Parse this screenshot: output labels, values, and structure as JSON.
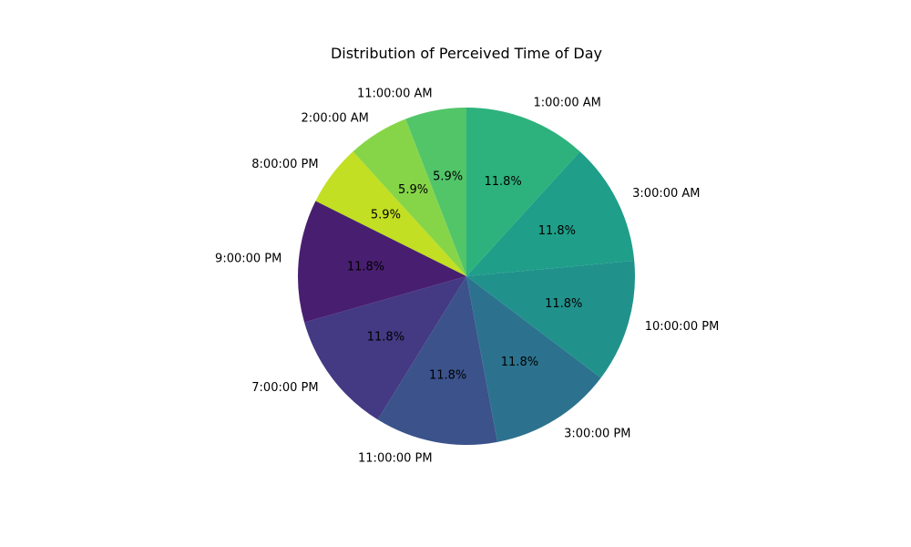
{
  "chart_data": {
    "type": "pie",
    "title": "Distribution of Perceived Time of Day",
    "start_angle_deg": 90,
    "direction": "counterclockwise",
    "slices": [
      {
        "label": "11:00:00 AM",
        "value": 5.9,
        "pct_label": "5.9%",
        "color": "#52c569"
      },
      {
        "label": "2:00:00 AM",
        "value": 5.9,
        "pct_label": "5.9%",
        "color": "#86d549"
      },
      {
        "label": "8:00:00 PM",
        "value": 5.9,
        "pct_label": "5.9%",
        "color": "#c2df23"
      },
      {
        "label": "9:00:00 PM",
        "value": 11.8,
        "pct_label": "11.8%",
        "color": "#481f70"
      },
      {
        "label": "7:00:00 PM",
        "value": 11.8,
        "pct_label": "11.8%",
        "color": "#443983"
      },
      {
        "label": "11:00:00 PM",
        "value": 11.8,
        "pct_label": "11.8%",
        "color": "#3b528b"
      },
      {
        "label": "3:00:00 PM",
        "value": 11.8,
        "pct_label": "11.8%",
        "color": "#2c728e"
      },
      {
        "label": "10:00:00 PM",
        "value": 11.8,
        "pct_label": "11.8%",
        "color": "#21918c"
      },
      {
        "label": "3:00:00 AM",
        "value": 11.8,
        "pct_label": "11.8%",
        "color": "#1f9e89"
      },
      {
        "label": "1:00:00 AM",
        "value": 11.8,
        "pct_label": "11.8%",
        "color": "#2db27d"
      }
    ]
  }
}
